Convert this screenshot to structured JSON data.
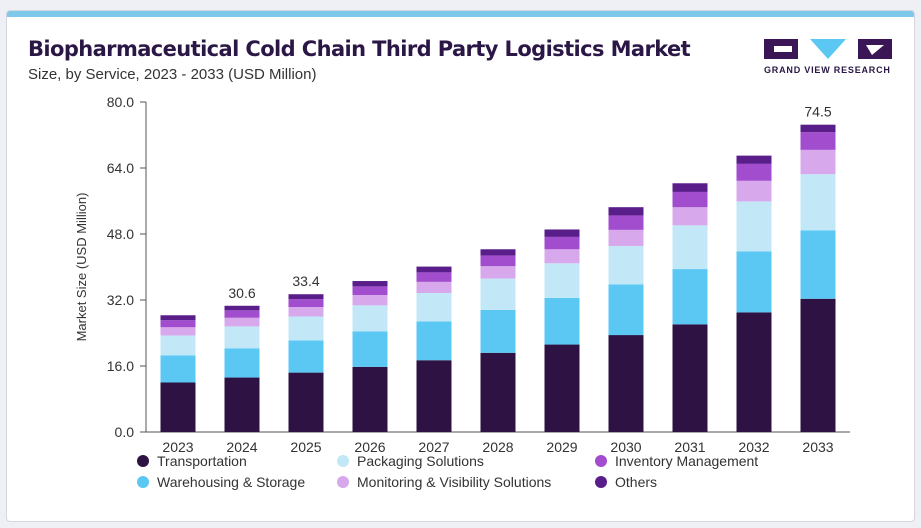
{
  "header": {
    "title": "Biopharmaceutical Cold Chain Third Party Logistics Market",
    "subtitle": "Size, by Service, 2023 - 2033 (USD Million)",
    "logo_text": "GRAND VIEW RESEARCH"
  },
  "colors": {
    "title": "#2a1745",
    "accent_bar": "#7ec8ea",
    "axis": "#555555"
  },
  "chart_data": {
    "type": "bar",
    "stacked": true,
    "ylabel": "Market Size (USD Million)",
    "ylim": [
      0,
      80
    ],
    "yticks": [
      "0.0",
      "16.0",
      "32.0",
      "48.0",
      "64.0",
      "80.0"
    ],
    "grid": false,
    "legend_position": "bottom",
    "categories": [
      "2023",
      "2024",
      "2025",
      "2026",
      "2027",
      "2028",
      "2029",
      "2030",
      "2031",
      "2032",
      "2033"
    ],
    "series": [
      {
        "name": "Transportation",
        "color": "#2d1243",
        "values": [
          12.0,
          13.2,
          14.4,
          15.8,
          17.4,
          19.2,
          21.2,
          23.5,
          26.1,
          29.0,
          32.3
        ]
      },
      {
        "name": "Warehousing & Storage",
        "color": "#5bc8f3",
        "values": [
          6.6,
          7.1,
          7.8,
          8.6,
          9.4,
          10.4,
          11.3,
          12.3,
          13.4,
          14.8,
          16.6
        ]
      },
      {
        "name": "Packaging Solutions",
        "color": "#c2e8f7",
        "values": [
          4.8,
          5.3,
          5.8,
          6.3,
          6.9,
          7.6,
          8.4,
          9.3,
          10.6,
          12.1,
          13.6
        ]
      },
      {
        "name": "Monitoring & Visibility Solutions",
        "color": "#d8a8ec",
        "values": [
          2.0,
          2.1,
          2.3,
          2.5,
          2.7,
          3.0,
          3.4,
          3.9,
          4.4,
          5.0,
          5.9
        ]
      },
      {
        "name": "Inventory Management",
        "color": "#a24cce",
        "values": [
          1.7,
          1.8,
          1.9,
          2.1,
          2.3,
          2.6,
          3.0,
          3.5,
          3.7,
          4.1,
          4.3
        ]
      },
      {
        "name": "Others",
        "color": "#5a1e8a",
        "values": [
          1.2,
          1.1,
          1.2,
          1.3,
          1.4,
          1.5,
          1.8,
          2.0,
          2.1,
          2.0,
          1.8
        ]
      }
    ],
    "data_labels": [
      {
        "category": "2024",
        "text": "30.6"
      },
      {
        "category": "2025",
        "text": "33.4"
      },
      {
        "category": "2033",
        "text": "74.5"
      }
    ]
  },
  "legend": {
    "items": [
      {
        "label": "Transportation",
        "color": "#2d1243"
      },
      {
        "label": "Warehousing & Storage",
        "color": "#5bc8f3"
      },
      {
        "label": "Packaging Solutions",
        "color": "#c2e8f7"
      },
      {
        "label": "Monitoring & Visibility Solutions",
        "color": "#d8a8ec"
      },
      {
        "label": "Inventory Management",
        "color": "#a24cce"
      },
      {
        "label": "Others",
        "color": "#5a1e8a"
      }
    ]
  }
}
